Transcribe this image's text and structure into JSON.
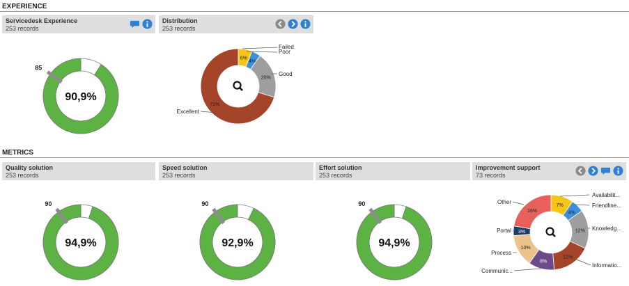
{
  "sections": {
    "experience": "EXPERIENCE",
    "metrics": "METRICS"
  },
  "colors": {
    "gauge_green": "#5cb344",
    "header_bg": "#dedede",
    "icon_blue": "#2f80d0",
    "icon_gray": "#8a8a8a"
  },
  "panels": {
    "servicedesk": {
      "title": "Servicedesk Experience",
      "records": "253 records",
      "icons": [
        "comment-icon",
        "info-icon"
      ]
    },
    "distribution": {
      "title": "Distribution",
      "records": "253 records",
      "icons": [
        "back-icon",
        "forward-icon",
        "info-icon"
      ]
    },
    "quality": {
      "title": "Quality solution",
      "records": "253 records"
    },
    "speed": {
      "title": "Speed solution",
      "records": "253 records"
    },
    "effort": {
      "title": "Effort solution",
      "records": "253 records"
    },
    "improvement": {
      "title": "Improvement support",
      "records": "73 records",
      "icons": [
        "back-icon",
        "forward-icon",
        "comment-icon",
        "info-icon"
      ]
    }
  },
  "chart_data": [
    {
      "type": "gauge",
      "panel": "Servicedesk Experience",
      "value": 0.909,
      "value_label": "90,9%",
      "target": 0.85,
      "target_label": "85"
    },
    {
      "type": "pie",
      "panel": "Distribution",
      "center_icon": "search-icon",
      "slices": [
        {
          "label": "Failed",
          "value": 0,
          "value_label": "",
          "color": "#c0392b"
        },
        {
          "label": "Poor",
          "value": 6,
          "value_label": "6%",
          "color": "#f5c518"
        },
        {
          "label": "",
          "value": 4,
          "value_label": "4%",
          "color": "#3d8fd9"
        },
        {
          "label": "Good",
          "value": 20,
          "value_label": "20%",
          "color": "#9e9e9e"
        },
        {
          "label": "Excellent",
          "value": 71,
          "value_label": "71%",
          "color": "#a4452a"
        }
      ]
    },
    {
      "type": "gauge",
      "panel": "Quality solution",
      "value": 0.949,
      "value_label": "94,9%",
      "target": 0.9,
      "target_label": "90"
    },
    {
      "type": "gauge",
      "panel": "Speed solution",
      "value": 0.929,
      "value_label": "92,9%",
      "target": 0.9,
      "target_label": "90"
    },
    {
      "type": "gauge",
      "panel": "Effort solution",
      "value": 0.949,
      "value_label": "94,9%",
      "target": 0.9,
      "target_label": "90"
    },
    {
      "type": "pie",
      "panel": "Improvement support",
      "center_icon": "search-icon",
      "slices": [
        {
          "label": "Availabilit...",
          "value": 7,
          "value_label": "7%",
          "color": "#f5c518"
        },
        {
          "label": "Friendline...",
          "value": 4,
          "value_label": "4%",
          "color": "#3d8fd9"
        },
        {
          "label": "Knowledg...",
          "value": 12,
          "value_label": "12%",
          "color": "#9e9e9e"
        },
        {
          "label": "Informatio...",
          "value": 12,
          "value_label": "12%",
          "color": "#a4452a"
        },
        {
          "label": "Communic...",
          "value": 8,
          "value_label": "8%",
          "color": "#6d4a8c"
        },
        {
          "label": "Process",
          "value": 10,
          "value_label": "10%",
          "color": "#ecc38c"
        },
        {
          "label": "Portal",
          "value": 3,
          "value_label": "3%",
          "color": "#1d3f66"
        },
        {
          "label": "Other",
          "value": 16,
          "value_label": "16%",
          "color": "#e8605a"
        }
      ]
    }
  ]
}
